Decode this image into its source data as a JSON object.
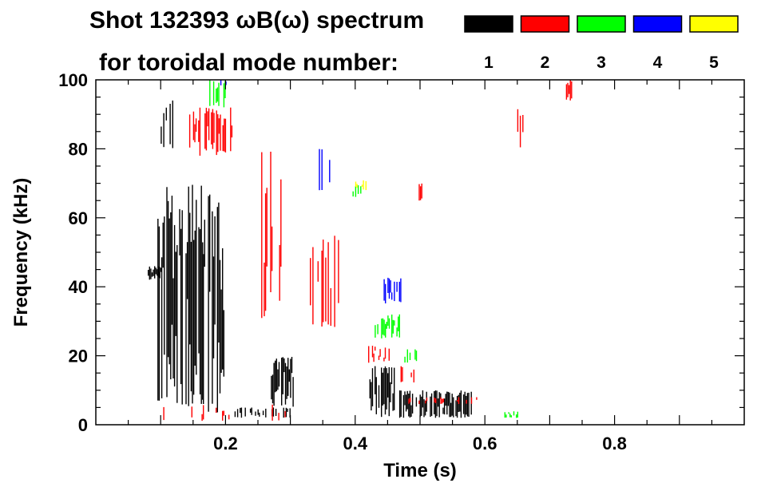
{
  "chart_data": {
    "type": "heatmap",
    "title_line1": "Shot 132393 ωB(ω) spectrum",
    "title_line2": "for toroidal mode number:",
    "xlabel": "Time (s)",
    "ylabel": "Frequency (kHz)",
    "xlim": [
      0,
      1.0
    ],
    "ylim": [
      0,
      100
    ],
    "x_ticks": [
      "0.2",
      "0.4",
      "0.6",
      "0.8"
    ],
    "x_tick_values": [
      0.2,
      0.4,
      0.6,
      0.8
    ],
    "y_ticks": [
      "0",
      "20",
      "40",
      "60",
      "80",
      "100"
    ],
    "y_tick_values": [
      0,
      20,
      40,
      60,
      80,
      100
    ],
    "legend": [
      {
        "label": "1",
        "color": "#000000"
      },
      {
        "label": "2",
        "color": "#ff0000"
      },
      {
        "label": "3",
        "color": "#00ff00"
      },
      {
        "label": "4",
        "color": "#0000ff"
      },
      {
        "label": "5",
        "color": "#ffff00"
      }
    ],
    "regions": [
      {
        "mode": 1,
        "t": [
          0.095,
          0.165
        ],
        "f": [
          5,
          70
        ],
        "density": 0.75
      },
      {
        "mode": 1,
        "t": [
          0.165,
          0.2
        ],
        "f": [
          2,
          68
        ],
        "density": 0.55
      },
      {
        "mode": 1,
        "t": [
          0.08,
          0.1
        ],
        "f": [
          42,
          46
        ],
        "density": 0.9
      },
      {
        "mode": 1,
        "t": [
          0.27,
          0.305
        ],
        "f": [
          5,
          20
        ],
        "density": 0.85
      },
      {
        "mode": 1,
        "t": [
          0.42,
          0.46
        ],
        "f": [
          2,
          17
        ],
        "density": 0.8
      },
      {
        "mode": 1,
        "t": [
          0.46,
          0.58
        ],
        "f": [
          2,
          10
        ],
        "density": 0.75
      },
      {
        "mode": 1,
        "t": [
          0.21,
          0.3
        ],
        "f": [
          2,
          5
        ],
        "density": 0.4
      },
      {
        "mode": 1,
        "t": [
          0.1,
          0.12
        ],
        "f": [
          80,
          95
        ],
        "density": 0.35
      },
      {
        "mode": 2,
        "t": [
          0.14,
          0.21
        ],
        "f": [
          78,
          92
        ],
        "density": 0.6
      },
      {
        "mode": 2,
        "t": [
          0.255,
          0.285
        ],
        "f": [
          30,
          80
        ],
        "density": 0.4
      },
      {
        "mode": 2,
        "t": [
          0.33,
          0.38
        ],
        "f": [
          28,
          55
        ],
        "density": 0.55
      },
      {
        "mode": 2,
        "t": [
          0.42,
          0.46
        ],
        "f": [
          18,
          23
        ],
        "density": 0.6
      },
      {
        "mode": 2,
        "t": [
          0.47,
          0.49
        ],
        "f": [
          12,
          17
        ],
        "density": 0.5
      },
      {
        "mode": 2,
        "t": [
          0.48,
          0.59
        ],
        "f": [
          6,
          8
        ],
        "density": 0.3
      },
      {
        "mode": 2,
        "t": [
          0.49,
          0.505
        ],
        "f": [
          65,
          70
        ],
        "density": 0.5
      },
      {
        "mode": 2,
        "t": [
          0.64,
          0.66
        ],
        "f": [
          80,
          92
        ],
        "density": 0.3
      },
      {
        "mode": 2,
        "t": [
          0.725,
          0.735
        ],
        "f": [
          94,
          100
        ],
        "density": 0.5
      },
      {
        "mode": 2,
        "t": [
          0.1,
          0.3
        ],
        "f": [
          1,
          6
        ],
        "density": 0.1
      },
      {
        "mode": 3,
        "t": [
          0.175,
          0.2
        ],
        "f": [
          92,
          100
        ],
        "density": 0.5
      },
      {
        "mode": 3,
        "t": [
          0.43,
          0.47
        ],
        "f": [
          25,
          32
        ],
        "density": 0.6
      },
      {
        "mode": 3,
        "t": [
          0.47,
          0.5
        ],
        "f": [
          18,
          22
        ],
        "density": 0.4
      },
      {
        "mode": 3,
        "t": [
          0.63,
          0.65
        ],
        "f": [
          2,
          4
        ],
        "density": 0.6
      },
      {
        "mode": 3,
        "t": [
          0.39,
          0.41
        ],
        "f": [
          66,
          70
        ],
        "density": 0.3
      },
      {
        "mode": 4,
        "t": [
          0.43,
          0.47
        ],
        "f": [
          35,
          43
        ],
        "density": 0.3
      },
      {
        "mode": 4,
        "t": [
          0.34,
          0.36
        ],
        "f": [
          68,
          80
        ],
        "density": 0.3
      },
      {
        "mode": 4,
        "t": [
          0.19,
          0.2
        ],
        "f": [
          98,
          100
        ],
        "density": 0.5
      },
      {
        "mode": 5,
        "t": [
          0.4,
          0.42
        ],
        "f": [
          68,
          71
        ],
        "density": 0.3
      }
    ]
  }
}
